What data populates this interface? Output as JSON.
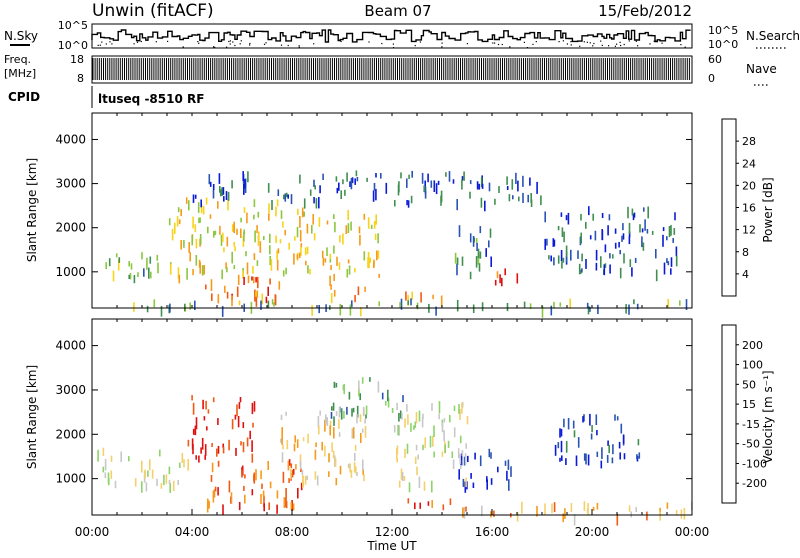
{
  "header": {
    "radar": "Unwin  (fitACF)",
    "beam": "Beam 07",
    "date": "15/Feb/2012"
  },
  "side_labels": {
    "nsky": "N.Sky",
    "nsearch": "N.Search",
    "freq": "Freq.",
    "freq_unit": "[MHz]",
    "nave": "Nave",
    "cpid": "CPID",
    "cpid_text": "ltuseq -8510 RF"
  },
  "strip_ticks": {
    "noise_left": [
      "10^5",
      "10^0"
    ],
    "noise_right": [
      "10^5",
      "10^0"
    ],
    "freq_left": [
      "18",
      "8"
    ],
    "freq_right": [
      "60",
      "0"
    ]
  },
  "chart_data": [
    {
      "type": "heatmap",
      "title": "Power",
      "xlabel": "",
      "ylabel": "Slant Range [km]",
      "colorbar_label": "Power [dB]",
      "colorbar_ticks": [
        "4",
        "8",
        "12",
        "16",
        "20",
        "24",
        "28"
      ],
      "colorbar_colors": [
        "#0a1ad8",
        "#2a54b4",
        "#3f8f4f",
        "#8cc63f",
        "#f7d31a",
        "#f79a1a",
        "#f25a14",
        "#e01010"
      ],
      "xlim": [
        0,
        24
      ],
      "ylim": [
        180,
        4600
      ],
      "yticks": [
        "1000",
        "2000",
        "3000",
        "4000"
      ],
      "ytick_values": [
        1000,
        2000,
        3000,
        4000
      ],
      "features": [
        {
          "t0": 0.2,
          "t1": 3.2,
          "r0": 900,
          "r1": 1500,
          "level": 2.5
        },
        {
          "t0": 3.0,
          "t1": 7.5,
          "r0": 900,
          "r1": 2700,
          "level": 4.0
        },
        {
          "t0": 4.5,
          "t1": 8.0,
          "r0": 400,
          "r1": 900,
          "level": 6.0
        },
        {
          "t0": 5.0,
          "t1": 7.0,
          "r0": 450,
          "r1": 600,
          "level": 5.0
        },
        {
          "t0": 7.5,
          "t1": 11.5,
          "r0": 900,
          "r1": 2500,
          "level": 4.0
        },
        {
          "t0": 9.5,
          "t1": 11.0,
          "r0": 450,
          "r1": 750,
          "level": 5.5
        },
        {
          "t0": 12.5,
          "t1": 14.0,
          "r0": 460,
          "r1": 560,
          "level": 4.5
        },
        {
          "t0": 14.5,
          "t1": 16.0,
          "r0": 900,
          "r1": 2100,
          "level": 1.5
        },
        {
          "t0": 15.8,
          "t1": 17.3,
          "r0": 800,
          "r1": 1100,
          "level": 6.5
        },
        {
          "t0": 3.5,
          "t1": 18.0,
          "r0": 2600,
          "r1": 3300,
          "level": 1.0
        },
        {
          "t0": 18.0,
          "t1": 23.5,
          "r0": 1000,
          "r1": 2500,
          "level": 1.0
        },
        {
          "t0": 0.0,
          "t1": 24.0,
          "r0": 200,
          "r1": 400,
          "level": 2.5
        }
      ]
    },
    {
      "type": "heatmap",
      "title": "Velocity",
      "xlabel": "Time UT",
      "ylabel": "Slant Range [km]",
      "colorbar_label": "Velocity [m s⁻¹]",
      "colorbar_ticks": [
        "-200",
        "-100",
        "-50",
        "-15",
        "15",
        "50",
        "100",
        "200"
      ],
      "colorbar_colors": [
        "#e01010",
        "#f25a14",
        "#f79a1a",
        "#f5cf6a",
        "#c8c8c8",
        "#8cd46a",
        "#3f8f4f",
        "#2a54b4",
        "#0a1ad8"
      ],
      "xlim": [
        0,
        24
      ],
      "ylim": [
        180,
        4600
      ],
      "xticks": [
        "00:00",
        "04:00",
        "08:00",
        "12:00",
        "16:00",
        "20:00",
        "00:00"
      ],
      "xtick_values": [
        0,
        4,
        8,
        12,
        16,
        20,
        24
      ],
      "yticks": [
        "1000",
        "2000",
        "3000",
        "4000"
      ],
      "ytick_values": [
        1000,
        2000,
        3000,
        4000
      ],
      "features": [
        {
          "t0": 0.2,
          "t1": 4.0,
          "r0": 900,
          "r1": 1700,
          "level": 4.0
        },
        {
          "t0": 3.8,
          "t1": 6.5,
          "r0": 1500,
          "r1": 2900,
          "level": 0.0
        },
        {
          "t0": 4.5,
          "t1": 8.5,
          "r0": 400,
          "r1": 1500,
          "level": 1.0
        },
        {
          "t0": 4.5,
          "t1": 7.5,
          "r0": 400,
          "r1": 550,
          "level": 0.5
        },
        {
          "t0": 7.5,
          "t1": 11.0,
          "r0": 1000,
          "r1": 2600,
          "level": 3.0
        },
        {
          "t0": 9.0,
          "t1": 12.5,
          "r0": 2400,
          "r1": 3300,
          "level": 5.5
        },
        {
          "t0": 12.5,
          "t1": 14.5,
          "r0": 450,
          "r1": 560,
          "level": 0.3
        },
        {
          "t0": 14.5,
          "t1": 17.0,
          "r0": 900,
          "r1": 1700,
          "level": 8.0
        },
        {
          "t0": 18.5,
          "t1": 22.0,
          "r0": 1400,
          "r1": 2500,
          "level": 7.5
        },
        {
          "t0": 14.0,
          "t1": 24.0,
          "r0": 200,
          "r1": 500,
          "level": 2.5
        },
        {
          "t0": 12.0,
          "t1": 15.0,
          "r0": 900,
          "r1": 2800,
          "level": 4.0
        }
      ]
    }
  ]
}
